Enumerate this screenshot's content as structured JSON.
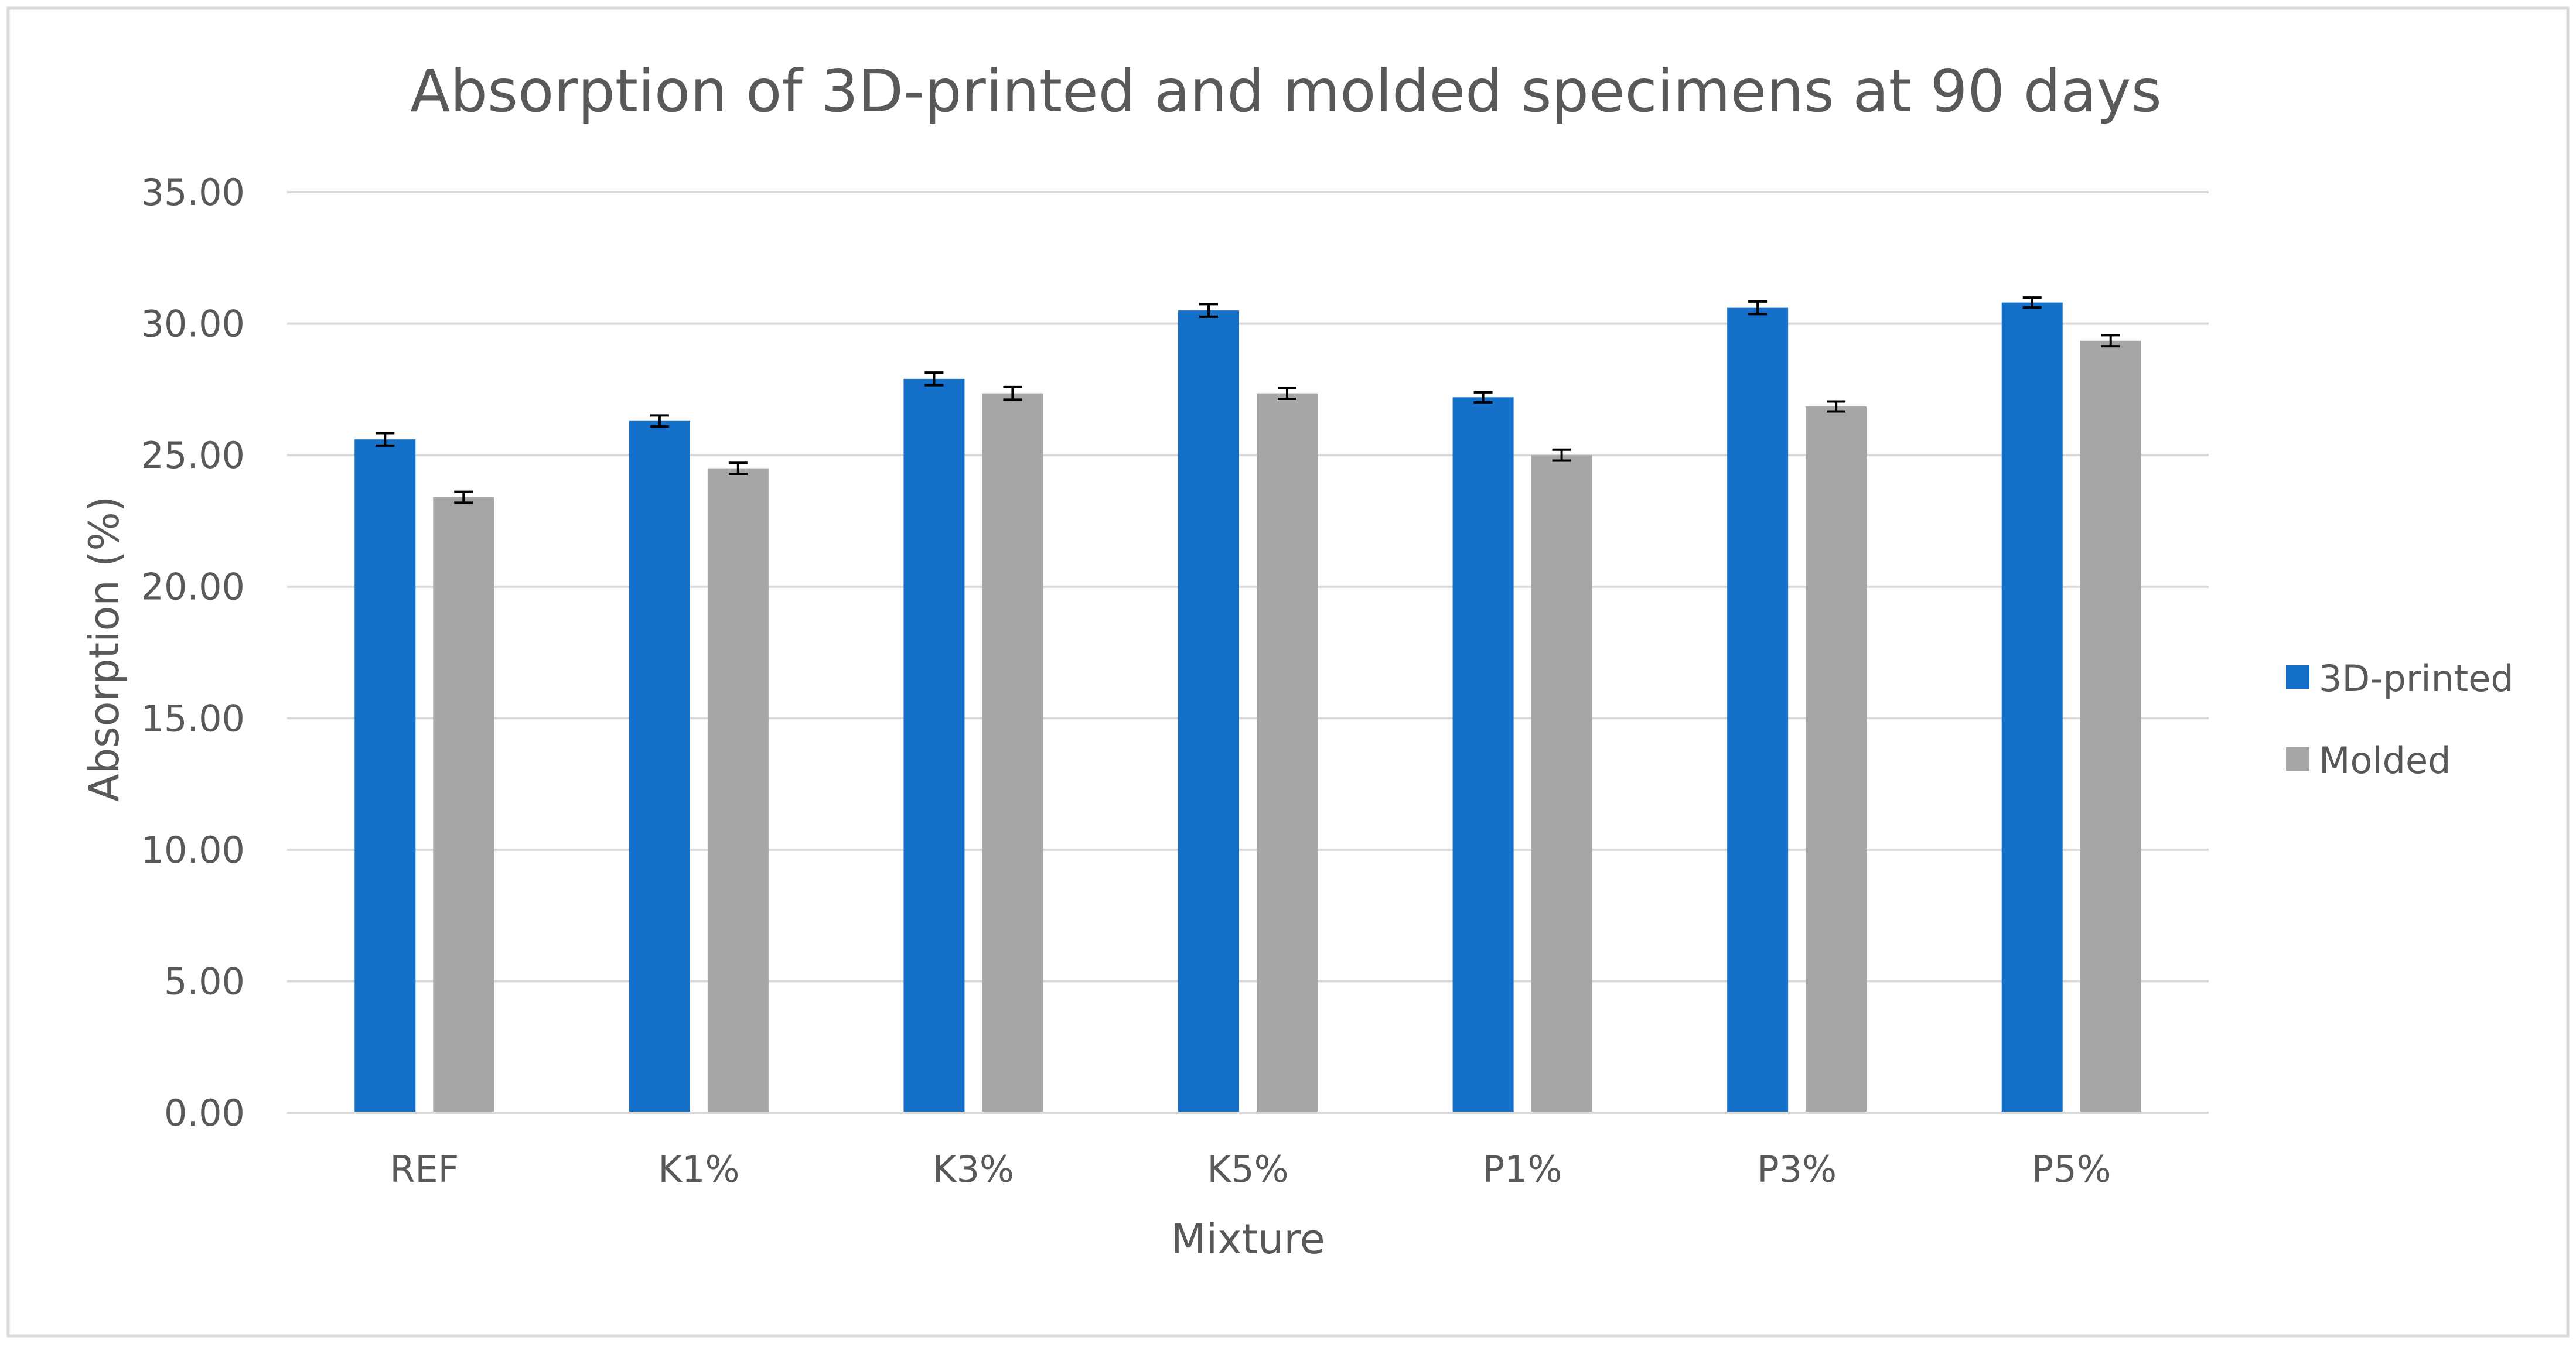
{
  "chart_data": {
    "type": "bar",
    "title": "Absorption of 3D-printed and molded specimens at 90 days",
    "xlabel": "Mixture",
    "ylabel": "Absorption (%)",
    "categories": [
      "REF",
      "K1%",
      "K3%",
      "K5%",
      "P1%",
      "P3%",
      "P5%"
    ],
    "series": [
      {
        "name": "3D-printed",
        "color": "#1570C9",
        "values": [
          25.6,
          26.3,
          27.9,
          30.5,
          27.2,
          30.6,
          30.8
        ],
        "errors": [
          0.15,
          0.12,
          0.15,
          0.15,
          0.1,
          0.15,
          0.1
        ]
      },
      {
        "name": "Molded",
        "color": "#A6A6A6",
        "values": [
          23.4,
          24.5,
          27.35,
          27.35,
          25.0,
          26.85,
          29.35
        ],
        "errors": [
          0.12,
          0.12,
          0.15,
          0.12,
          0.12,
          0.1,
          0.12
        ]
      }
    ],
    "ylim": [
      0,
      35
    ],
    "yticks": [
      "0.00",
      "5.00",
      "10.00",
      "15.00",
      "20.00",
      "25.00",
      "30.00",
      "35.00"
    ],
    "ytick_values": [
      0,
      5,
      10,
      15,
      20,
      25,
      30,
      35
    ],
    "grid": true,
    "legend_position": "right"
  }
}
